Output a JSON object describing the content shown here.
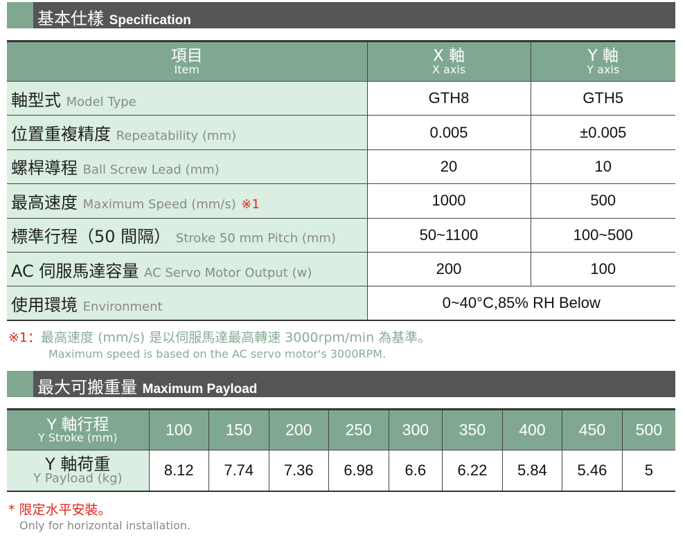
{
  "spec": {
    "title_zh": "基本仕樣",
    "title_en": "Specification",
    "header": {
      "item_zh": "項目",
      "item_en": "Item",
      "x_zh": "X 軸",
      "x_en": "X axis",
      "y_zh": "Y 軸",
      "y_en": "Y axis"
    },
    "rows": [
      {
        "zh": "軸型式",
        "en": "Model Type",
        "x": "GTH8",
        "y": "GTH5"
      },
      {
        "zh": "位置重複精度",
        "en": "Repeatability (mm)",
        "x": "0.005",
        "y": "±0.005"
      },
      {
        "zh": "螺桿導程",
        "en": "Ball Screw Lead (mm)",
        "x": "20",
        "y": "10"
      },
      {
        "zh": "最高速度",
        "en": "Maximum Speed (mm/s)",
        "mark": "※1",
        "x": "1000",
        "y": "500"
      },
      {
        "zh": "標準行程（50 間隔）",
        "en": "Stroke 50 mm Pitch (mm)",
        "x": "50~1100",
        "y": "100~500"
      },
      {
        "zh": "AC 伺服馬達容量",
        "en": "AC Servo Motor Output (w)",
        "x": "200",
        "y": "100"
      },
      {
        "zh": "使用環境",
        "en": "Environment",
        "both": "0~40°C,85% RH Below"
      }
    ],
    "note_mark": "※1：",
    "note_zh": "最高速度 (mm/s) 是以伺服馬達最高轉速 3000rpm/min 為基準。",
    "note_en": "Maximum speed is based on the AC servo motor's 3000RPM."
  },
  "payload": {
    "title_zh": "最大可搬重量",
    "title_en": "Maximum Payload",
    "stroke_zh": "Y 軸行程",
    "stroke_en": "Y Stroke (mm)",
    "load_zh": "Y 軸荷重",
    "load_en": "Y Payload (kg)",
    "strokes": [
      "100",
      "150",
      "200",
      "250",
      "300",
      "350",
      "400",
      "450",
      "500"
    ],
    "loads": [
      "8.12",
      "7.74",
      "7.36",
      "6.98",
      "6.6",
      "6.22",
      "5.84",
      "5.46",
      "5"
    ],
    "note_zh": "* 限定水平安裝。",
    "note_en": "Only for horizontal installation."
  },
  "colors": {
    "header": "#80a890",
    "label_bg": "#daeee2",
    "bar": "#555558",
    "accent": "#e0261b"
  }
}
